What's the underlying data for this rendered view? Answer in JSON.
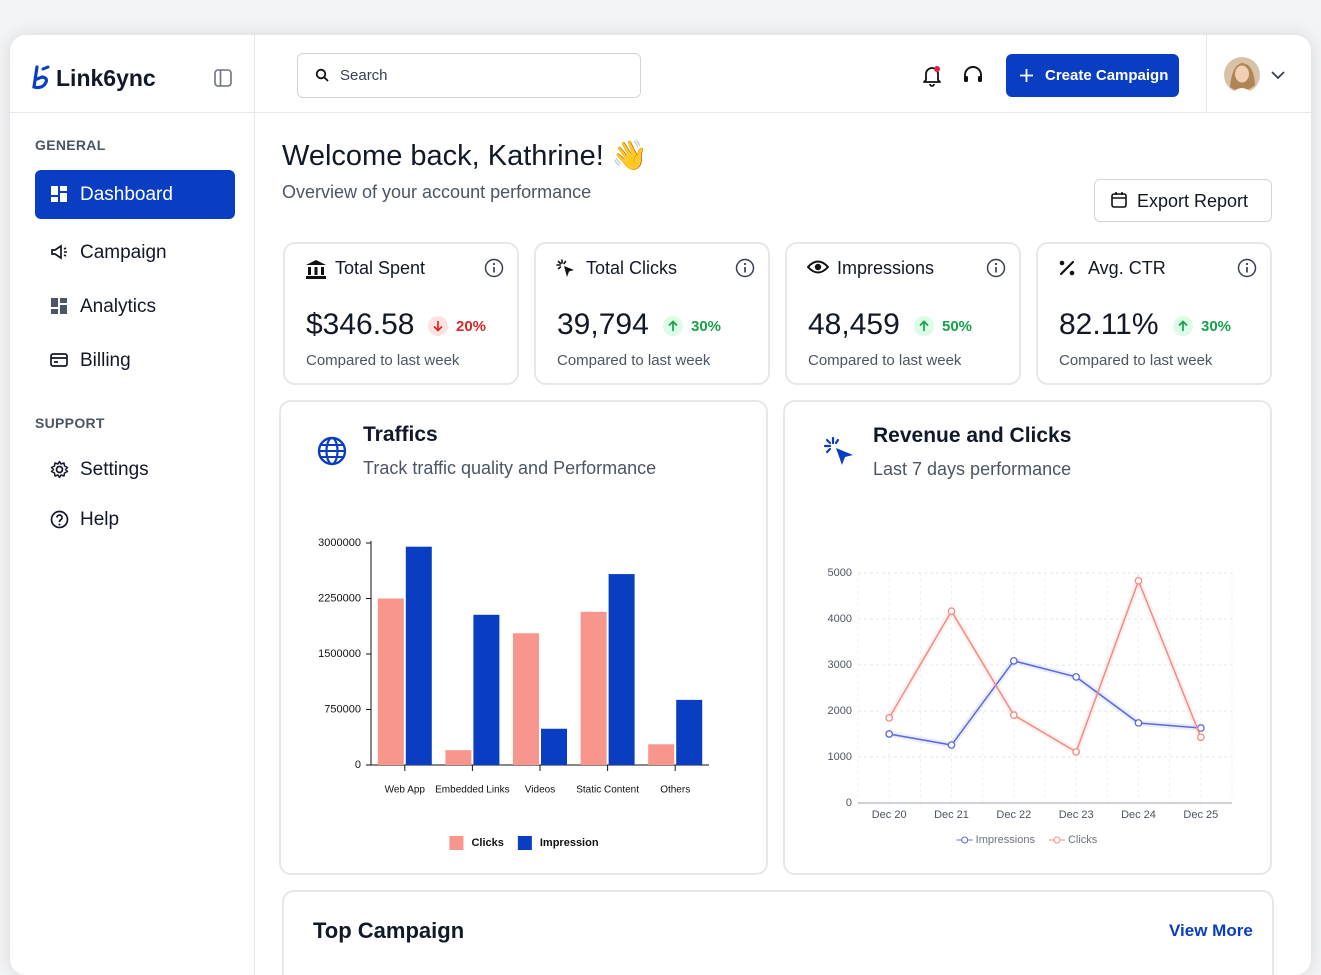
{
  "sidebar": {
    "brand": "Link6ync",
    "sections": [
      {
        "title": "GENERAL",
        "items": [
          "Dashboard",
          "Campaign",
          "Analytics",
          "Billing"
        ]
      },
      {
        "title": "SUPPORT",
        "items": [
          "Settings",
          "Help"
        ]
      }
    ]
  },
  "header": {
    "search": "Search",
    "button": "Create Campaign"
  },
  "welcome": {
    "title": "Welcome back, Kathrine! 👋",
    "subtitle": "Overview of your account performance",
    "button": "Export Report"
  },
  "stats": [
    {
      "label": "Total Spent",
      "value": "$346.58",
      "change": "20%",
      "trend": "down",
      "note": "Compared to last week"
    },
    {
      "label": "Total Clicks",
      "value": "39,794",
      "change": "30%",
      "trend": "up",
      "note": "Compared to last week"
    },
    {
      "label": "Impressions",
      "value": "48,459",
      "change": "50%",
      "trend": "up",
      "note": "Compared to last week"
    },
    {
      "label": "Avg. CTR",
      "value": "82.11%",
      "change": "30%",
      "trend": "up",
      "note": "Compared to last week"
    }
  ],
  "chart_data": [
    {
      "type": "bar",
      "title": "Traffics",
      "subtitle": "Track traffic quality and Performance",
      "categories": [
        "Web App",
        "Embedded Links",
        "Videos",
        "Static Content",
        "Others"
      ],
      "series": [
        {
          "name": "Clicks",
          "color": "#f8958c",
          "values": [
            2250000,
            200000,
            1780000,
            2070000,
            280000
          ]
        },
        {
          "name": "Impression",
          "color": "#0a3ec2",
          "values": [
            2950000,
            2030000,
            490000,
            2580000,
            880000
          ]
        }
      ],
      "ylim": [
        0,
        3000000
      ],
      "yticks": [
        0,
        750000,
        1500000,
        2250000,
        3000000
      ],
      "legend": "bottom"
    },
    {
      "type": "line",
      "title": "Revenue and Clicks",
      "subtitle": "Last 7 days performance",
      "categories": [
        "Dec 20",
        "Dec 21",
        "Dec 22",
        "Dec 23",
        "Dec 24",
        "Dec 25"
      ],
      "series": [
        {
          "name": "Impressions",
          "color": "#5a67e0",
          "values": [
            1500,
            1260,
            3090,
            2740,
            1740,
            1630
          ]
        },
        {
          "name": "Clicks",
          "color": "#f48a80",
          "values": [
            1850,
            4170,
            1910,
            1110,
            4830,
            1430
          ]
        }
      ],
      "ylim": [
        0,
        5000
      ],
      "yticks": [
        0,
        1000,
        2000,
        3000,
        4000,
        5000
      ],
      "grid": true,
      "legend": "bottom"
    }
  ],
  "top_campaign": {
    "title": "Top Campaign",
    "link": "View More"
  }
}
